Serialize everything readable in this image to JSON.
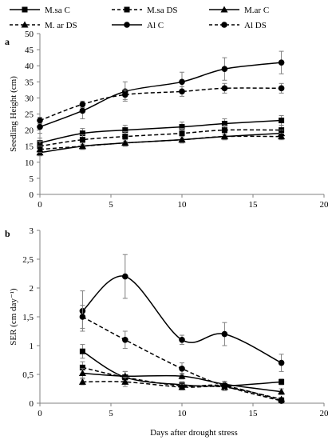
{
  "colors": {
    "line": "#000000",
    "axis": "#808080",
    "background": "#ffffff"
  },
  "legend": {
    "placement": "top",
    "entries": [
      {
        "label": "M.sa C",
        "dash": "solid",
        "marker": "square"
      },
      {
        "label": "M.sa DS",
        "dash": "dashed",
        "marker": "square"
      },
      {
        "label": "M.ar C",
        "dash": "solid",
        "marker": "triangle"
      },
      {
        "label": "M. ar DS",
        "dash": "dashed",
        "marker": "triangle"
      },
      {
        "label": "Al C",
        "dash": "solid",
        "marker": "circle"
      },
      {
        "label": "Al DS",
        "dash": "dashed",
        "marker": "circle"
      }
    ]
  },
  "chart_data": [
    {
      "type": "line",
      "panel_label": "a",
      "ylabel": "Seedling Height (cm)",
      "xlabel": "",
      "xlim": [
        0,
        20
      ],
      "ylim": [
        0,
        50
      ],
      "xticks": [
        "0",
        "5",
        "10",
        "15",
        "20"
      ],
      "yticks": [
        "0",
        "5",
        "10",
        "15",
        "20",
        "25",
        "30",
        "35",
        "40",
        "45",
        "50"
      ],
      "grid": false,
      "series": [
        {
          "name": "M.sa C",
          "dash": "solid",
          "marker": "square",
          "x": [
            0,
            3,
            6,
            10,
            13,
            17
          ],
          "y": [
            16,
            19,
            20,
            21,
            22,
            23
          ],
          "err": [
            1.5,
            1.5,
            1.5,
            1.5,
            1.5,
            1.5
          ]
        },
        {
          "name": "M.sa DS",
          "dash": "dashed",
          "marker": "square",
          "x": [
            0,
            3,
            6,
            10,
            13,
            17
          ],
          "y": [
            15,
            17,
            18,
            19,
            20,
            20
          ],
          "err": [
            1.5,
            1.5,
            1.5,
            1.5,
            1.5,
            1.5
          ]
        },
        {
          "name": "M.ar C",
          "dash": "solid",
          "marker": "triangle",
          "x": [
            0,
            3,
            6,
            10,
            13,
            17
          ],
          "y": [
            13,
            15,
            16,
            17,
            18,
            19
          ],
          "err": [
            1,
            1,
            1,
            1,
            1,
            1
          ]
        },
        {
          "name": "M. ar DS",
          "dash": "dashed",
          "marker": "triangle",
          "x": [
            0,
            3,
            6,
            10,
            13,
            17
          ],
          "y": [
            14,
            15,
            16,
            17,
            18,
            18
          ],
          "err": [
            1,
            1,
            1,
            1,
            1,
            1
          ]
        },
        {
          "name": "Al C",
          "dash": "solid",
          "marker": "circle",
          "x": [
            0,
            3,
            6,
            10,
            13,
            17
          ],
          "y": [
            21,
            26,
            32,
            35,
            39,
            41
          ],
          "err": [
            2,
            2.5,
            3,
            3,
            3.5,
            3.5
          ]
        },
        {
          "name": "Al DS",
          "dash": "dashed",
          "marker": "circle",
          "x": [
            0,
            3,
            6,
            10,
            13,
            17
          ],
          "y": [
            23,
            28,
            31,
            32,
            33,
            33
          ],
          "err": [
            1,
            1,
            1.5,
            1.5,
            1.5,
            1.5
          ]
        }
      ]
    },
    {
      "type": "line",
      "panel_label": "b",
      "ylabel": "SER (cm day⁻¹)",
      "xlabel": "Days after drought stress",
      "xlim": [
        0,
        20
      ],
      "ylim": [
        0,
        3
      ],
      "xticks": [
        "0",
        "5",
        "10",
        "15",
        "20"
      ],
      "yticks": [
        "0",
        "0,5",
        "1",
        "1,5",
        "2",
        "2,5",
        "3"
      ],
      "grid": false,
      "series": [
        {
          "name": "M.sa C",
          "dash": "solid",
          "marker": "square",
          "x": [
            3,
            6,
            10,
            13,
            17
          ],
          "y": [
            0.9,
            0.45,
            0.32,
            0.3,
            0.37
          ],
          "err": [
            0.12,
            0.1,
            0.05,
            0.05,
            0.05
          ]
        },
        {
          "name": "M.sa DS",
          "dash": "dashed",
          "marker": "square",
          "x": [
            3,
            6,
            10,
            13,
            17
          ],
          "y": [
            0.62,
            0.45,
            0.3,
            0.3,
            0.05
          ],
          "err": [
            0.1,
            0.1,
            0.05,
            0.05,
            0.03
          ]
        },
        {
          "name": "M.ar C",
          "dash": "solid",
          "marker": "triangle",
          "x": [
            3,
            6,
            10,
            13,
            17
          ],
          "y": [
            0.52,
            0.47,
            0.47,
            0.33,
            0.2
          ],
          "err": [
            0.08,
            0.08,
            0.05,
            0.05,
            0.05
          ]
        },
        {
          "name": "M. ar DS",
          "dash": "dashed",
          "marker": "triangle",
          "x": [
            3,
            6,
            10,
            13,
            17
          ],
          "y": [
            0.37,
            0.37,
            0.28,
            0.28,
            0.07
          ],
          "err": [
            0.05,
            0.08,
            0.05,
            0.05,
            0.03
          ]
        },
        {
          "name": "Al C",
          "dash": "solid",
          "marker": "circle",
          "x": [
            3,
            6,
            10,
            13,
            17
          ],
          "y": [
            1.6,
            2.2,
            1.1,
            1.2,
            0.7
          ],
          "err": [
            0.35,
            0.38,
            0.08,
            0.2,
            0.15
          ]
        },
        {
          "name": "Al DS",
          "dash": "dashed",
          "marker": "circle",
          "x": [
            3,
            6,
            10,
            13,
            17
          ],
          "y": [
            1.5,
            1.1,
            0.6,
            0.3,
            0.04
          ],
          "err": [
            0.2,
            0.15,
            0.1,
            0.08,
            0.03
          ]
        }
      ]
    }
  ]
}
